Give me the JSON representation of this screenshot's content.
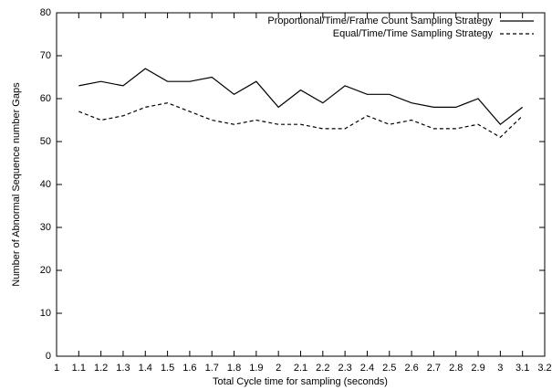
{
  "chart_data": {
    "type": "line",
    "xlabel": "Total Cycle time for sampling (seconds)",
    "ylabel": "Number of Abnormal Sequence number Gaps",
    "x": [
      1.1,
      1.2,
      1.3,
      1.4,
      1.5,
      1.6,
      1.7,
      1.8,
      1.9,
      2,
      2.1,
      2.2,
      2.3,
      2.4,
      2.5,
      2.6,
      2.7,
      2.8,
      2.9,
      3,
      3.1
    ],
    "series": [
      {
        "name": "Proportional/Time/Frame Count Sampling Strategy",
        "color": "#000000",
        "dash": "none",
        "values": [
          63,
          64,
          63,
          67,
          64,
          64,
          65,
          61,
          64,
          58,
          62,
          59,
          63,
          61,
          61,
          59,
          58,
          58,
          60,
          54,
          58
        ]
      },
      {
        "name": "Equal/Time/Time Sampling Strategy",
        "color": "#000000",
        "dash": "4,3",
        "values": [
          57,
          55,
          56,
          58,
          59,
          57,
          55,
          54,
          55,
          54,
          54,
          53,
          53,
          56,
          54,
          55,
          53,
          53,
          54,
          51,
          56
        ]
      }
    ],
    "xlim": [
      1,
      3.2
    ],
    "xticks": [
      1,
      1.1,
      1.2,
      1.3,
      1.4,
      1.5,
      1.6,
      1.7,
      1.8,
      1.9,
      2,
      2.1,
      2.2,
      2.3,
      2.4,
      2.5,
      2.6,
      2.7,
      2.8,
      2.9,
      3,
      3.1,
      3.2
    ],
    "ylim": [
      0,
      80
    ],
    "yticks": [
      0,
      10,
      20,
      30,
      40,
      50,
      60,
      70,
      80
    ],
    "grid": false,
    "legend": "top-right"
  }
}
